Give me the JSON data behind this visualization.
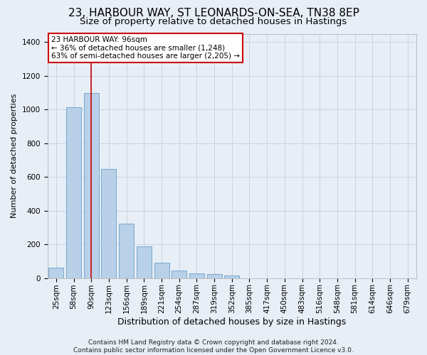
{
  "title": "23, HARBOUR WAY, ST LEONARDS-ON-SEA, TN38 8EP",
  "subtitle": "Size of property relative to detached houses in Hastings",
  "xlabel": "Distribution of detached houses by size in Hastings",
  "ylabel": "Number of detached properties",
  "categories": [
    "25sqm",
    "58sqm",
    "90sqm",
    "123sqm",
    "156sqm",
    "189sqm",
    "221sqm",
    "254sqm",
    "287sqm",
    "319sqm",
    "352sqm",
    "385sqm",
    "417sqm",
    "450sqm",
    "483sqm",
    "516sqm",
    "548sqm",
    "581sqm",
    "614sqm",
    "646sqm",
    "679sqm"
  ],
  "values": [
    62,
    1015,
    1100,
    648,
    325,
    188,
    90,
    47,
    28,
    22,
    16,
    0,
    0,
    0,
    0,
    0,
    0,
    0,
    0,
    0,
    0
  ],
  "bar_color": "#b8d0e8",
  "bar_edge_color": "#6a9fca",
  "vline_x": 2,
  "vline_color": "#cc0000",
  "annotation_text": "23 HARBOUR WAY: 96sqm\n← 36% of detached houses are smaller (1,248)\n63% of semi-detached houses are larger (2,205) →",
  "annotation_box_facecolor": "#ffffff",
  "annotation_box_edgecolor": "#cc0000",
  "ylim": [
    0,
    1450
  ],
  "yticks": [
    0,
    200,
    400,
    600,
    800,
    1000,
    1200,
    1400
  ],
  "grid_color": "#c8d4e4",
  "background_color": "#e8eef6",
  "footer": "Contains HM Land Registry data © Crown copyright and database right 2024.\nContains public sector information licensed under the Open Government Licence v3.0.",
  "title_fontsize": 11,
  "subtitle_fontsize": 9.5,
  "xlabel_fontsize": 9,
  "ylabel_fontsize": 8,
  "tick_fontsize": 7.5,
  "annot_fontsize": 7.5,
  "footer_fontsize": 6.5
}
